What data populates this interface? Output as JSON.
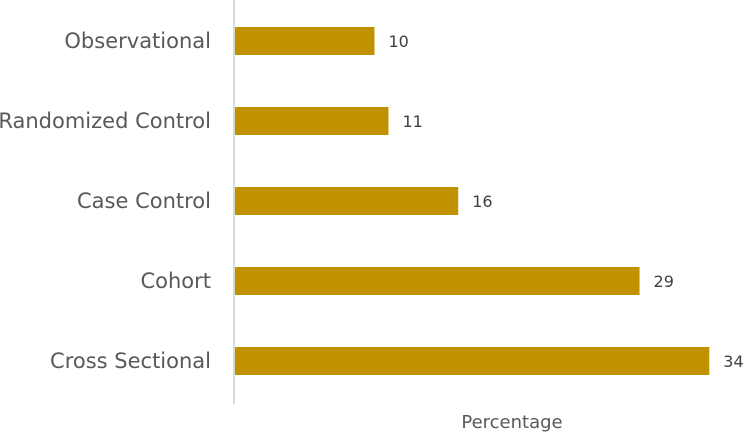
{
  "chart_data": {
    "type": "bar",
    "orientation": "horizontal",
    "categories": [
      "Observational",
      "Randomized Control",
      "Case Control",
      "Cohort",
      "Cross Sectional"
    ],
    "values": [
      10,
      11,
      16,
      29,
      34
    ],
    "title": "",
    "xlabel": "Percentage",
    "ylabel": "",
    "xlim": [
      0,
      36
    ],
    "bar_color": "#C09200",
    "grid": false,
    "legend": "none"
  }
}
